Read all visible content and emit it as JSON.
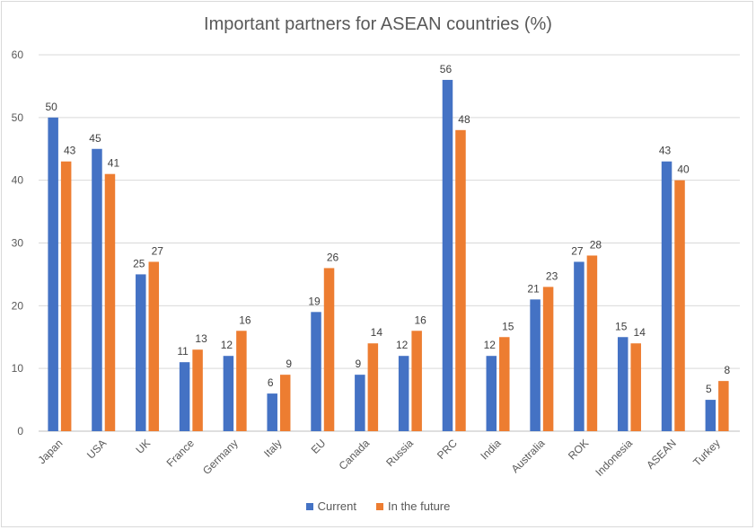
{
  "chart_data": {
    "type": "bar",
    "title": "Important partners for ASEAN countries (%)",
    "categories": [
      "Japan",
      "USA",
      "UK",
      "France",
      "Germany",
      "Italy",
      "EU",
      "Canada",
      "Russia",
      "PRC",
      "India",
      "Australia",
      "ROK",
      "Indonesia",
      "ASEAN",
      "Turkey"
    ],
    "series": [
      {
        "name": "Current",
        "color": "#4472c4",
        "values": [
          50,
          45,
          25,
          11,
          12,
          6,
          19,
          9,
          12,
          56,
          12,
          21,
          27,
          15,
          43,
          5
        ]
      },
      {
        "name": "In the future",
        "color": "#ed7d31",
        "values": [
          43,
          41,
          27,
          13,
          16,
          9,
          26,
          14,
          16,
          48,
          15,
          23,
          28,
          14,
          40,
          8
        ]
      }
    ],
    "ylim": [
      0,
      60
    ],
    "yticks": [
      0,
      10,
      20,
      30,
      40,
      50,
      60
    ],
    "xlabel": "",
    "ylabel": "",
    "grid": true,
    "legend_position": "bottom",
    "data_labels": true
  }
}
